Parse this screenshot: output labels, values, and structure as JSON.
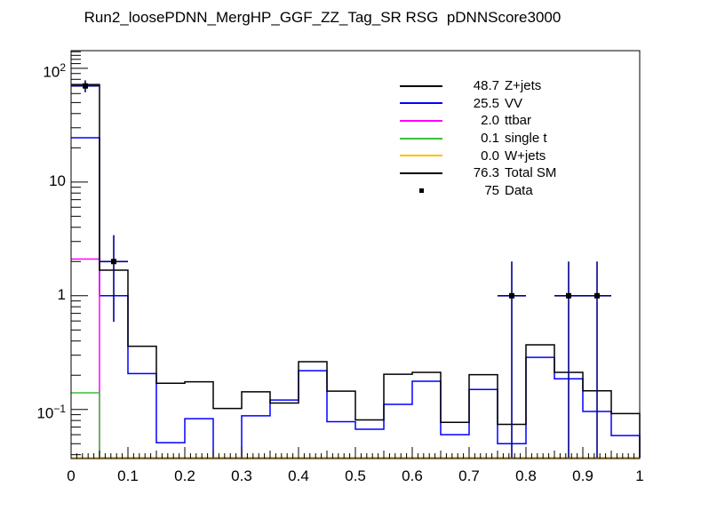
{
  "title": "Run2_loosePDNN_MergHP_GGF_ZZ_Tag_SR RSG  pDNNScore3000",
  "colors": {
    "background": "#ffffff",
    "frame": "#000000",
    "zjets": "#000000",
    "vv": "#0000ff",
    "ttbar": "#ff00ff",
    "single_t": "#3cbe3c",
    "wjets": "#ffc000",
    "total_sm": "#000000",
    "data_marker": "#000000",
    "data_error": "#00008b"
  },
  "legend": {
    "entries": [
      {
        "value": "48.7",
        "label": "Z+jets",
        "color": "#000000",
        "type": "line"
      },
      {
        "value": "25.5",
        "label": "VV",
        "color": "#0000ff",
        "type": "line"
      },
      {
        "value": "2.0",
        "label": "ttbar",
        "color": "#ff00ff",
        "type": "line"
      },
      {
        "value": "0.1",
        "label": "single t",
        "color": "#3cbe3c",
        "type": "line"
      },
      {
        "value": "0.0",
        "label": "W+jets",
        "color": "#ffc000",
        "type": "line"
      },
      {
        "value": "76.3",
        "label": "Total SM",
        "color": "#000000",
        "type": "line"
      },
      {
        "value": "75",
        "label": "Data",
        "color": "#000000",
        "type": "marker"
      }
    ]
  },
  "axes": {
    "x": {
      "min": 0,
      "max": 1,
      "major_step": 0.1,
      "medium_step": 0.05,
      "minor_step": 0.01,
      "labels": [
        "0",
        "0.1",
        "0.2",
        "0.3",
        "0.4",
        "0.5",
        "0.6",
        "0.7",
        "0.8",
        "0.9",
        "1"
      ]
    },
    "y": {
      "scale": "log",
      "min": 0.037,
      "max": 143,
      "major_ticks": [
        {
          "value": 100,
          "text": "10",
          "exp": "2"
        },
        {
          "value": 10,
          "text": "10",
          "exp": ""
        },
        {
          "value": 1,
          "text": "1",
          "exp": ""
        },
        {
          "value": 0.1,
          "text": "10",
          "exp": "−1"
        }
      ]
    }
  },
  "chart_data": {
    "type": "bar",
    "style": "step-histogram-outline",
    "title": "Run2_loosePDNN_MergHP_GGF_ZZ_Tag_SR RSG  pDNNScore3000",
    "xlabel": "",
    "ylabel": "",
    "xlim": [
      0,
      1
    ],
    "ylim": [
      0.037,
      143
    ],
    "ylog": true,
    "grid": false,
    "legend_position": "upper-right",
    "bin_edges": [
      0,
      0.05,
      0.1,
      0.15,
      0.2,
      0.25,
      0.3,
      0.35,
      0.4,
      0.45,
      0.5,
      0.55,
      0.6,
      0.65,
      0.7,
      0.75,
      0.8,
      0.85,
      0.9,
      0.95,
      1.0
    ],
    "note": "Z+jets (48.7, black) visually coincides with the Total SM black line; ttbar/single-t/W+jets are at ~0 (below axis minimum) in all bins except the first.",
    "series": [
      {
        "name": "Total SM",
        "yield": 76.3,
        "color": "#000000",
        "values": [
          72,
          1.68,
          0.36,
          0.17,
          0.175,
          0.102,
          0.143,
          0.114,
          0.263,
          0.145,
          0.081,
          0.204,
          0.212,
          0.077,
          0.202,
          0.074,
          0.37,
          0.212,
          0.146,
          0.092
        ]
      },
      {
        "name": "VV",
        "yield": 25.5,
        "color": "#0000ff",
        "values": [
          24.5,
          1.0,
          0.207,
          0.051,
          0.083,
          0.03,
          0.088,
          0.121,
          0.219,
          0.078,
          0.067,
          0.111,
          0.177,
          0.06,
          0.15,
          0.05,
          0.287,
          0.186,
          0.096,
          0.059
        ]
      },
      {
        "name": "ttbar",
        "yield": 2.0,
        "color": "#ff00ff",
        "values": [
          2.1,
          0,
          0,
          0,
          0,
          0,
          0,
          0,
          0,
          0,
          0,
          0,
          0,
          0,
          0,
          0,
          0,
          0,
          0,
          0
        ]
      },
      {
        "name": "single t",
        "yield": 0.1,
        "color": "#3cbe3c",
        "values": [
          0.14,
          0,
          0,
          0,
          0,
          0,
          0,
          0,
          0,
          0,
          0,
          0,
          0,
          0,
          0,
          0,
          0,
          0,
          0,
          0
        ]
      },
      {
        "name": "W+jets",
        "yield": 0.0,
        "color": "#ffc000",
        "values": [
          0,
          0,
          0,
          0,
          0,
          0,
          0,
          0,
          0,
          0,
          0,
          0,
          0,
          0,
          0,
          0,
          0,
          0,
          0,
          0
        ]
      }
    ],
    "data_points": {
      "name": "Data",
      "total": 75,
      "marker": "square",
      "marker_color": "#000000",
      "error_color": "#00008b",
      "points": [
        {
          "x": 0.025,
          "y": 70,
          "ylo": 61.6,
          "yhi": 78.4,
          "xerr": 0.025
        },
        {
          "x": 0.075,
          "y": 2,
          "ylo": 0.59,
          "yhi": 3.41,
          "xerr": 0.025
        },
        {
          "x": 0.775,
          "y": 1,
          "ylo": 0,
          "yhi": 2,
          "xerr": 0.025
        },
        {
          "x": 0.875,
          "y": 1,
          "ylo": 0,
          "yhi": 2,
          "xerr": 0.025
        },
        {
          "x": 0.925,
          "y": 1,
          "ylo": 0,
          "yhi": 2,
          "xerr": 0.025
        }
      ]
    }
  }
}
